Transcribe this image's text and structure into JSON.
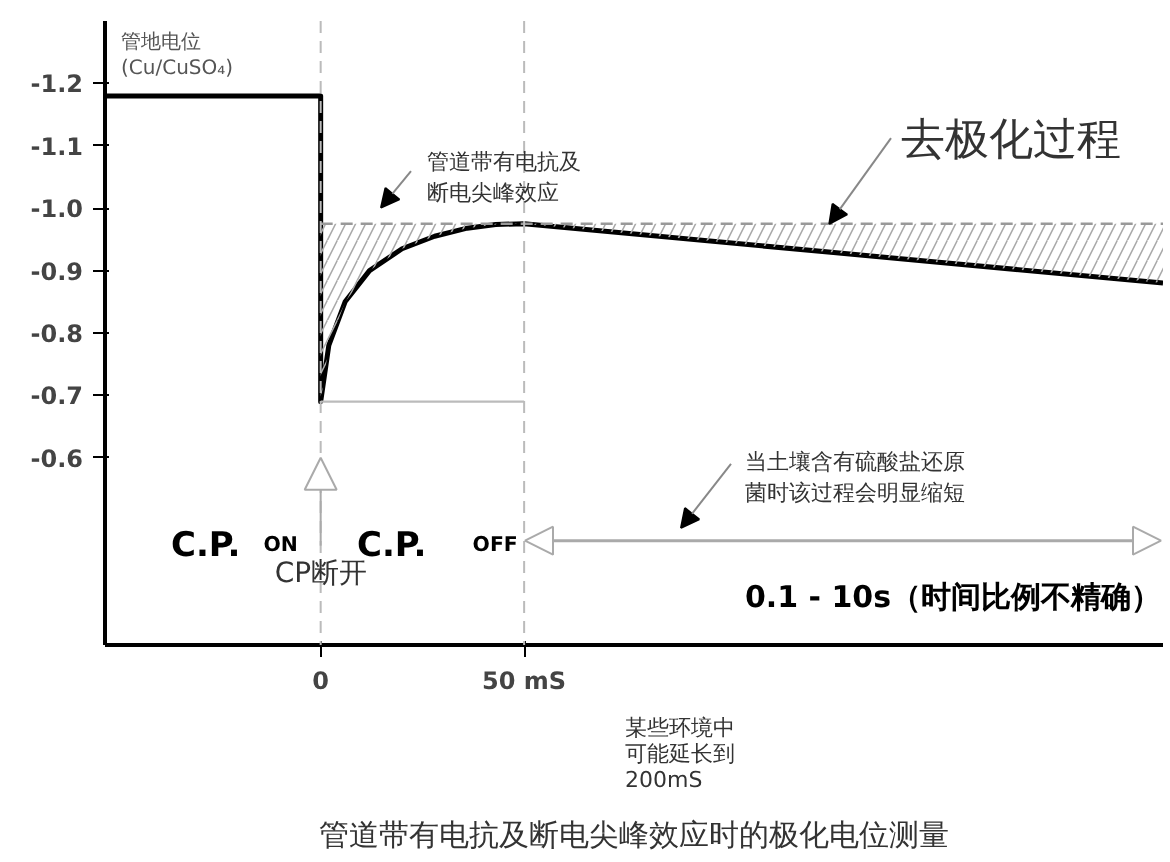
{
  "chart_data": {
    "type": "line",
    "title": "管道带有电抗及断电尖峰效应时的极化电位测量",
    "ylabel": "管地电位\n(Cu/CuSO₄)",
    "xlim": [
      -53,
      207
    ],
    "ylim": [
      -0.3,
      -1.3
    ],
    "xticks": [
      0,
      {
        "value": 50,
        "label": "50 mS"
      }
    ],
    "yticks": [
      -1.2,
      -1.1,
      {
        "value": -1.0,
        "label": "-1.0"
      },
      -0.9,
      -0.8,
      -0.7,
      -0.6
    ],
    "grid": false,
    "series": [
      {
        "color": "#000000",
        "x": [
          -53,
          0,
          0,
          2,
          6,
          12,
          20,
          28,
          36,
          43,
          50,
          207
        ],
        "values": [
          -1.18,
          -1.18,
          -0.69,
          -0.78,
          -0.85,
          -0.9,
          -0.935,
          -0.955,
          -0.968,
          -0.974,
          -0.975,
          -0.88
        ]
      },
      {
        "color": "#999999",
        "line_style": "dashed",
        "x": [
          0,
          2,
          6,
          12,
          20,
          28,
          36,
          43,
          50,
          207
        ],
        "values": [
          -0.975,
          -0.975,
          -0.975,
          -0.975,
          -0.975,
          -0.975,
          -0.975,
          -0.975,
          -0.975,
          -0.975
        ],
        "lower": [
          -0.69,
          -0.78,
          -0.85,
          -0.9,
          -0.935,
          -0.955,
          -0.968,
          -0.974,
          -0.975,
          -0.88
        ],
        "upper": [
          -0.975,
          -0.975,
          -0.975,
          -0.975,
          -0.975,
          -0.975,
          -0.975,
          -0.975,
          -0.975,
          -0.975
        ]
      },
      {
        "color": "#bbbbbb",
        "x": [
          0,
          50
        ],
        "values": [
          -0.69,
          -0.69
        ]
      }
    ],
    "ref_lines": [
      {
        "axis": "x",
        "value": 0,
        "color": "#bbbbbb",
        "line_style": "dashed"
      },
      {
        "axis": "x",
        "value": 50,
        "color": "#bbbbbb",
        "line_style": "dashed"
      }
    ],
    "annotations": [
      "管道带有电抗及断电尖峰效应",
      {
        "text": "去极化过程",
        "x": 125,
        "y": -0.975
      },
      "当土壤含有硫酸盐还原菌时该过程会明显缩短",
      "C.P.$_{ON}$",
      "C.P. $_{OFF}$",
      {
        "text": "CP断开",
        "x": 0,
        "y": -0.6
      },
      "0.1 - 10s（时间比例不精确）",
      "某些环境中可能延长到200mS"
    ]
  }
}
